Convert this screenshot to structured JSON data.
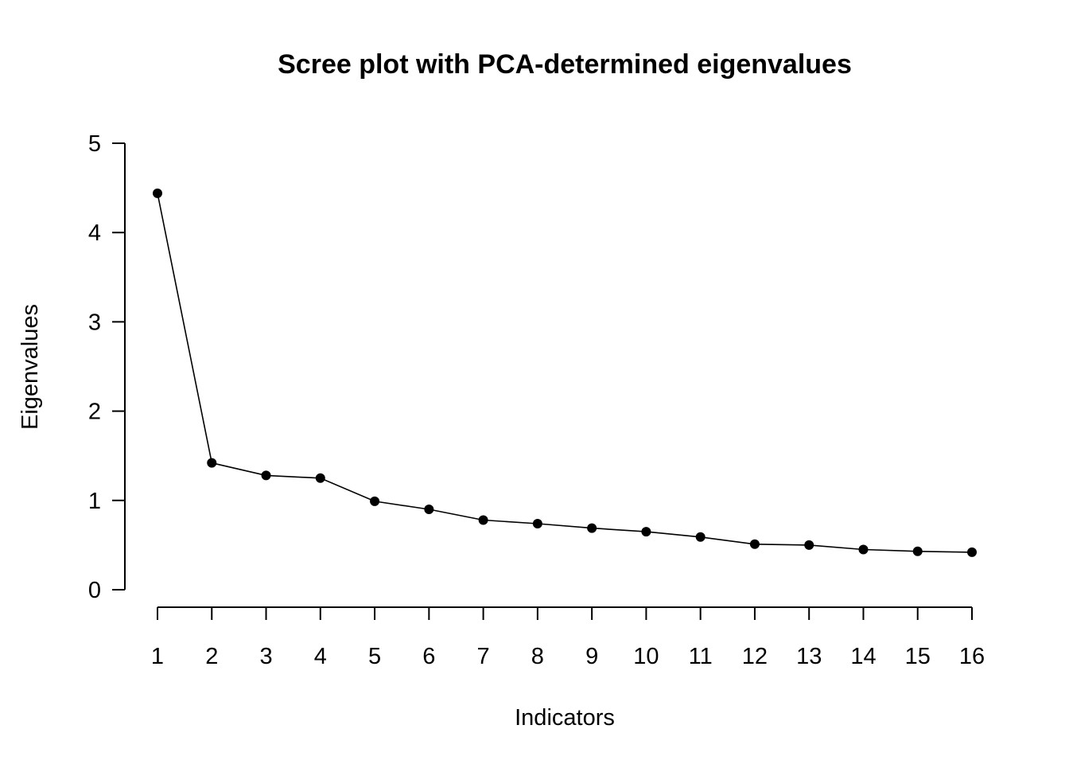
{
  "chart_data": {
    "type": "line",
    "title": "Scree plot with PCA-determined eigenvalues",
    "xlabel": "Indicators",
    "ylabel": "Eigenvalues",
    "x": [
      1,
      2,
      3,
      4,
      5,
      6,
      7,
      8,
      9,
      10,
      11,
      12,
      13,
      14,
      15,
      16
    ],
    "x_ticks": [
      "1",
      "2",
      "3",
      "4",
      "5",
      "6",
      "7",
      "8",
      "9",
      "10",
      "11",
      "12",
      "13",
      "14",
      "15",
      "16"
    ],
    "y_ticks": [
      "0",
      "1",
      "2",
      "3",
      "4",
      "5"
    ],
    "ylim": [
      0,
      5
    ],
    "xlim": [
      1,
      16
    ],
    "grid": false,
    "series": [
      {
        "values": [
          4.44,
          1.42,
          1.28,
          1.25,
          0.99,
          0.9,
          0.78,
          0.74,
          0.69,
          0.65,
          0.59,
          0.51,
          0.5,
          0.45,
          0.43,
          0.42
        ],
        "color": "#000000",
        "marker": "filled-circle"
      }
    ]
  }
}
